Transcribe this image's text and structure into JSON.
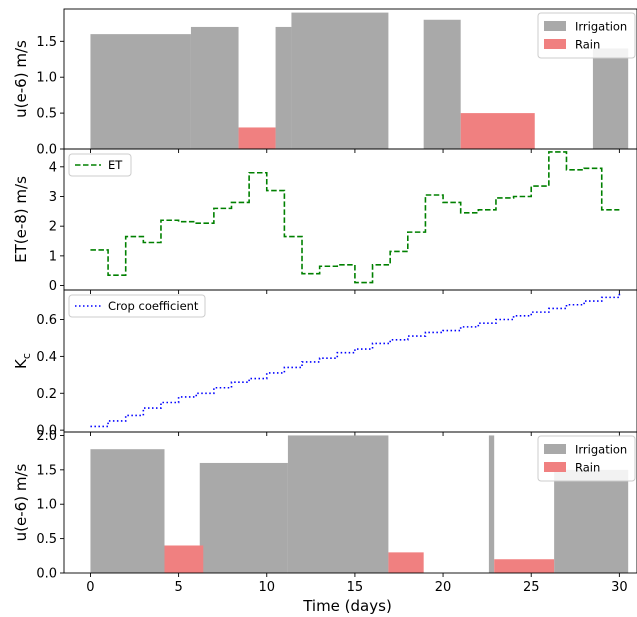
{
  "chart_data": [
    {
      "type": "bar",
      "ylabel": "u(e-6) m/s",
      "xlim": [
        -1.5,
        31
      ],
      "ylim": [
        0,
        1.95
      ],
      "yticks": [
        "0.0",
        "0.5",
        "1.0",
        "1.5"
      ],
      "yticks_values": [
        0,
        0.5,
        1.0,
        1.5
      ],
      "legend": {
        "position": "top-right",
        "entries": [
          "Irrigation",
          "Rain"
        ]
      },
      "series": [
        {
          "name": "Irrigation",
          "color": "#a9a9a9",
          "bars": [
            {
              "x0": 0.0,
              "x1": 5.7,
              "value": 1.6
            },
            {
              "x0": 5.7,
              "x1": 8.4,
              "value": 1.7
            },
            {
              "x0": 10.5,
              "x1": 11.4,
              "value": 1.7
            },
            {
              "x0": 11.4,
              "x1": 16.9,
              "value": 1.9
            },
            {
              "x0": 18.9,
              "x1": 21.0,
              "value": 1.8
            },
            {
              "x0": 28.5,
              "x1": 30.5,
              "value": 1.4
            }
          ]
        },
        {
          "name": "Rain",
          "color": "#f08080",
          "bars": [
            {
              "x0": 8.4,
              "x1": 10.5,
              "value": 0.3
            },
            {
              "x0": 21.0,
              "x1": 25.2,
              "value": 0.5
            }
          ]
        }
      ]
    },
    {
      "type": "line",
      "ylabel": "ET(e-8) m/s",
      "xlim": [
        -1.5,
        31
      ],
      "ylim": [
        -0.15,
        4.6
      ],
      "yticks": [
        "0",
        "1",
        "2",
        "3",
        "4"
      ],
      "yticks_values": [
        0,
        1,
        2,
        3,
        4
      ],
      "legend": {
        "position": "top-left",
        "entries": [
          "ET"
        ]
      },
      "series": [
        {
          "name": "ET",
          "color": "#008000",
          "style": "dashed",
          "drawstyle": "steps",
          "x": [
            0,
            1,
            2,
            3,
            4,
            5,
            6,
            7,
            8,
            9,
            10,
            11,
            12,
            13,
            14,
            15,
            16,
            17,
            18,
            19,
            20,
            21,
            22,
            23,
            24,
            25,
            26,
            27,
            28,
            29,
            30
          ],
          "y": [
            1.2,
            0.35,
            1.65,
            1.45,
            2.2,
            2.15,
            2.1,
            2.6,
            2.8,
            3.8,
            3.2,
            1.65,
            0.4,
            0.65,
            0.7,
            0.1,
            0.7,
            1.15,
            1.8,
            3.05,
            2.8,
            2.45,
            2.55,
            2.95,
            3.0,
            3.35,
            4.5,
            3.9,
            3.95,
            2.55,
            2.55
          ]
        }
      ]
    },
    {
      "type": "line",
      "ylabel": "K_c",
      "xlim": [
        -1.5,
        31
      ],
      "ylim": [
        -0.01,
        0.76
      ],
      "yticks": [
        "0.0",
        "0.2",
        "0.4",
        "0.6"
      ],
      "yticks_values": [
        0.0,
        0.2,
        0.4,
        0.6
      ],
      "legend": {
        "position": "top-left",
        "entries": [
          "Crop coefficient"
        ]
      },
      "series": [
        {
          "name": "Crop coefficient",
          "color": "#0000ff",
          "style": "dotted",
          "drawstyle": "steps",
          "x": [
            0,
            1,
            2,
            3,
            4,
            5,
            6,
            7,
            8,
            9,
            10,
            11,
            12,
            13,
            14,
            15,
            16,
            17,
            18,
            19,
            20,
            21,
            22,
            23,
            24,
            25,
            26,
            27,
            28,
            29,
            30
          ],
          "y": [
            0.02,
            0.05,
            0.08,
            0.12,
            0.15,
            0.18,
            0.2,
            0.23,
            0.26,
            0.28,
            0.31,
            0.34,
            0.37,
            0.39,
            0.42,
            0.44,
            0.47,
            0.49,
            0.51,
            0.53,
            0.54,
            0.56,
            0.58,
            0.6,
            0.62,
            0.64,
            0.66,
            0.68,
            0.7,
            0.72,
            0.74
          ]
        }
      ]
    },
    {
      "type": "bar",
      "ylabel": "u(e-6) m/s",
      "xlabel": "Time (days)",
      "xlim": [
        -1.5,
        31
      ],
      "ylim": [
        0,
        2.05
      ],
      "xticks": [
        "0",
        "5",
        "10",
        "15",
        "20",
        "25",
        "30"
      ],
      "xticks_values": [
        0,
        5,
        10,
        15,
        20,
        25,
        30
      ],
      "yticks": [
        "0.0",
        "0.5",
        "1.0",
        "1.5",
        "2.0"
      ],
      "yticks_values": [
        0,
        0.5,
        1.0,
        1.5,
        2.0
      ],
      "legend": {
        "position": "top-right",
        "entries": [
          "Irrigation",
          "Rain"
        ]
      },
      "series": [
        {
          "name": "Irrigation",
          "color": "#a9a9a9",
          "bars": [
            {
              "x0": 0.0,
              "x1": 4.2,
              "value": 1.8
            },
            {
              "x0": 6.2,
              "x1": 11.2,
              "value": 1.6
            },
            {
              "x0": 11.2,
              "x1": 16.9,
              "value": 2.0
            },
            {
              "x0": 22.6,
              "x1": 22.9,
              "value": 2.0
            },
            {
              "x0": 26.3,
              "x1": 30.5,
              "value": 1.5
            }
          ]
        },
        {
          "name": "Rain",
          "color": "#f08080",
          "bars": [
            {
              "x0": 4.2,
              "x1": 6.4,
              "value": 0.4
            },
            {
              "x0": 16.9,
              "x1": 18.9,
              "value": 0.3
            },
            {
              "x0": 22.9,
              "x1": 26.3,
              "value": 0.2
            }
          ]
        }
      ]
    }
  ]
}
